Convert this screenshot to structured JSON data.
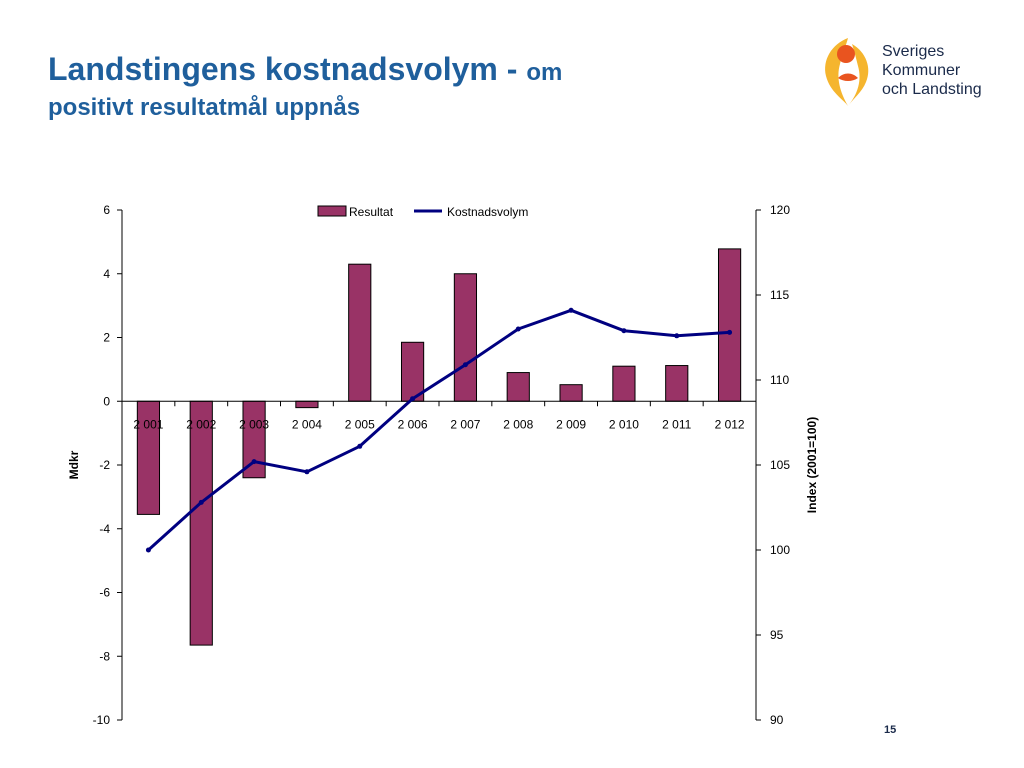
{
  "slide": {
    "title_main": "Landstingens kostnadsvolym - ",
    "title_sub": "om",
    "title_line2": "positivt resultatmål uppnås",
    "page_number": "15"
  },
  "logo": {
    "line1": "Sveriges",
    "line2": "Kommuner",
    "line3": "och Landsting",
    "colors": {
      "yellow": "#f5b52e",
      "orange": "#e9541f"
    }
  },
  "chart_data": {
    "type": "bar",
    "categories": [
      "2 001",
      "2 002",
      "2 003",
      "2 004",
      "2 005",
      "2 006",
      "2 007",
      "2 008",
      "2 009",
      "2 010",
      "2 011",
      "2 012"
    ],
    "series": [
      {
        "name": "Resultat",
        "type": "bar",
        "axis": "left",
        "color": "#993366",
        "values": [
          -3.55,
          -7.65,
          -2.4,
          -0.2,
          4.3,
          1.85,
          4.0,
          0.9,
          0.52,
          1.1,
          1.12,
          4.78
        ]
      },
      {
        "name": "Kostnadsvolym",
        "type": "line",
        "axis": "right",
        "color": "#000080",
        "values": [
          100.0,
          102.8,
          105.2,
          104.6,
          106.1,
          108.9,
          110.9,
          113.0,
          114.1,
          112.9,
          112.6,
          112.8
        ]
      }
    ],
    "ylabel": "Mdkr",
    "ylim": [
      -10,
      6
    ],
    "yticks": [
      "-10",
      "-8",
      "-6",
      "-4",
      "-2",
      "0",
      "2",
      "4",
      "6"
    ],
    "y2label": "Index (2001=100)",
    "y2lim": [
      90,
      120
    ],
    "y2ticks": [
      "90",
      "95",
      "100",
      "105",
      "110",
      "115",
      "120"
    ],
    "grid": false,
    "legend": "top-center"
  }
}
